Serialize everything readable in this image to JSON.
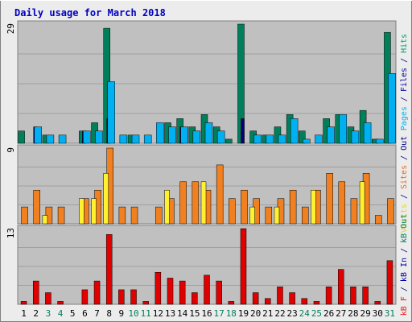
{
  "chart_data": {
    "type": "bar",
    "title": "Daily usage for March 2018",
    "days": [
      1,
      2,
      3,
      4,
      5,
      6,
      7,
      8,
      9,
      10,
      11,
      12,
      13,
      14,
      15,
      16,
      17,
      18,
      19,
      20,
      21,
      22,
      23,
      24,
      25,
      26,
      27,
      28,
      29,
      30,
      31
    ],
    "weekend_days": [
      3,
      4,
      10,
      11,
      17,
      18,
      24,
      25,
      31
    ],
    "panels": [
      {
        "name": "top",
        "max_label": "29",
        "ymax": 29,
        "side_label": [
          {
            "text": "Pages",
            "color": "#00B0F0"
          },
          {
            "text": " / ",
            "color": "#000080"
          },
          {
            "text": "Files",
            "color": "#0000A0"
          },
          {
            "text": " / ",
            "color": "#000080"
          },
          {
            "text": "Hits",
            "color": "#00A070"
          }
        ],
        "series": [
          {
            "name": "Hits",
            "color": "#00805A",
            "values": [
              3,
              0,
              2,
              0,
              0,
              3,
              5,
              28,
              0,
              2,
              0,
              0,
              5,
              6,
              4,
              7,
              4,
              1,
              29,
              3,
              2,
              4,
              7,
              3,
              0,
              6,
              7,
              4,
              8,
              1,
              27
            ]
          },
          {
            "name": "Files",
            "color": "#00007A",
            "values": [
              0,
              4,
              0,
              0,
              0,
              3,
              0,
              6,
              0,
              0,
              0,
              0,
              0,
              4,
              0,
              0,
              0,
              0,
              6,
              0,
              0,
              0,
              0,
              0,
              0,
              0,
              0,
              0,
              0,
              0,
              0
            ]
          },
          {
            "name": "Pages",
            "color": "#00B0F0",
            "values": [
              0,
              4,
              2,
              2,
              0,
              3,
              3,
              15,
              2,
              2,
              2,
              5,
              4,
              4,
              3,
              5,
              3,
              0,
              0,
              2,
              2,
              2,
              6,
              1,
              2,
              4,
              7,
              3,
              5,
              1,
              17
            ]
          }
        ]
      },
      {
        "name": "middle",
        "max_label": "9",
        "ymax": 9,
        "side_label": [
          {
            "text": "Visits",
            "color": "#E6D800"
          },
          {
            "text": " / ",
            "color": "#000080"
          },
          {
            "text": "Sites",
            "color": "#E07020"
          },
          {
            "text": " / ",
            "color": "#000080"
          },
          {
            "text": "Out",
            "color": "#000080"
          }
        ],
        "series": [
          {
            "name": "Sites",
            "color": "#F08020",
            "values": [
              2,
              4,
              2,
              2,
              0,
              3,
              4,
              9,
              2,
              2,
              0,
              2,
              3,
              5,
              5,
              4,
              7,
              3,
              4,
              3,
              2,
              3,
              4,
              2,
              4,
              6,
              5,
              3,
              6,
              1,
              3
            ]
          },
          {
            "name": "Visits",
            "color": "#FFF030",
            "values": [
              0,
              0,
              1,
              0,
              0,
              3,
              3,
              6,
              0,
              0,
              0,
              0,
              4,
              0,
              0,
              5,
              0,
              0,
              0,
              2,
              0,
              2,
              0,
              0,
              4,
              0,
              0,
              0,
              5,
              0,
              0
            ]
          }
        ]
      },
      {
        "name": "bottom",
        "max_label": "13",
        "ymax": 13,
        "side_label": [
          {
            "text": "kB F",
            "color": "#E02020"
          },
          {
            "text": " / ",
            "color": "#000080"
          },
          {
            "text": "kB In",
            "color": "#0000A0"
          },
          {
            "text": " / ",
            "color": "#000080"
          },
          {
            "text": "kB Out",
            "color": "#00805A"
          }
        ],
        "series": [
          {
            "name": "kB F",
            "color": "#E00000",
            "values": [
              0.5,
              4,
              2,
              0.5,
              0,
              2.5,
              4,
              12,
              2.5,
              2.5,
              0.5,
              5.5,
              4.5,
              4,
              2,
              5,
              4,
              0.5,
              13,
              2,
              1,
              3,
              2,
              1,
              0.5,
              3,
              6,
              3,
              3,
              0.5,
              7.5
            ]
          }
        ]
      }
    ]
  }
}
